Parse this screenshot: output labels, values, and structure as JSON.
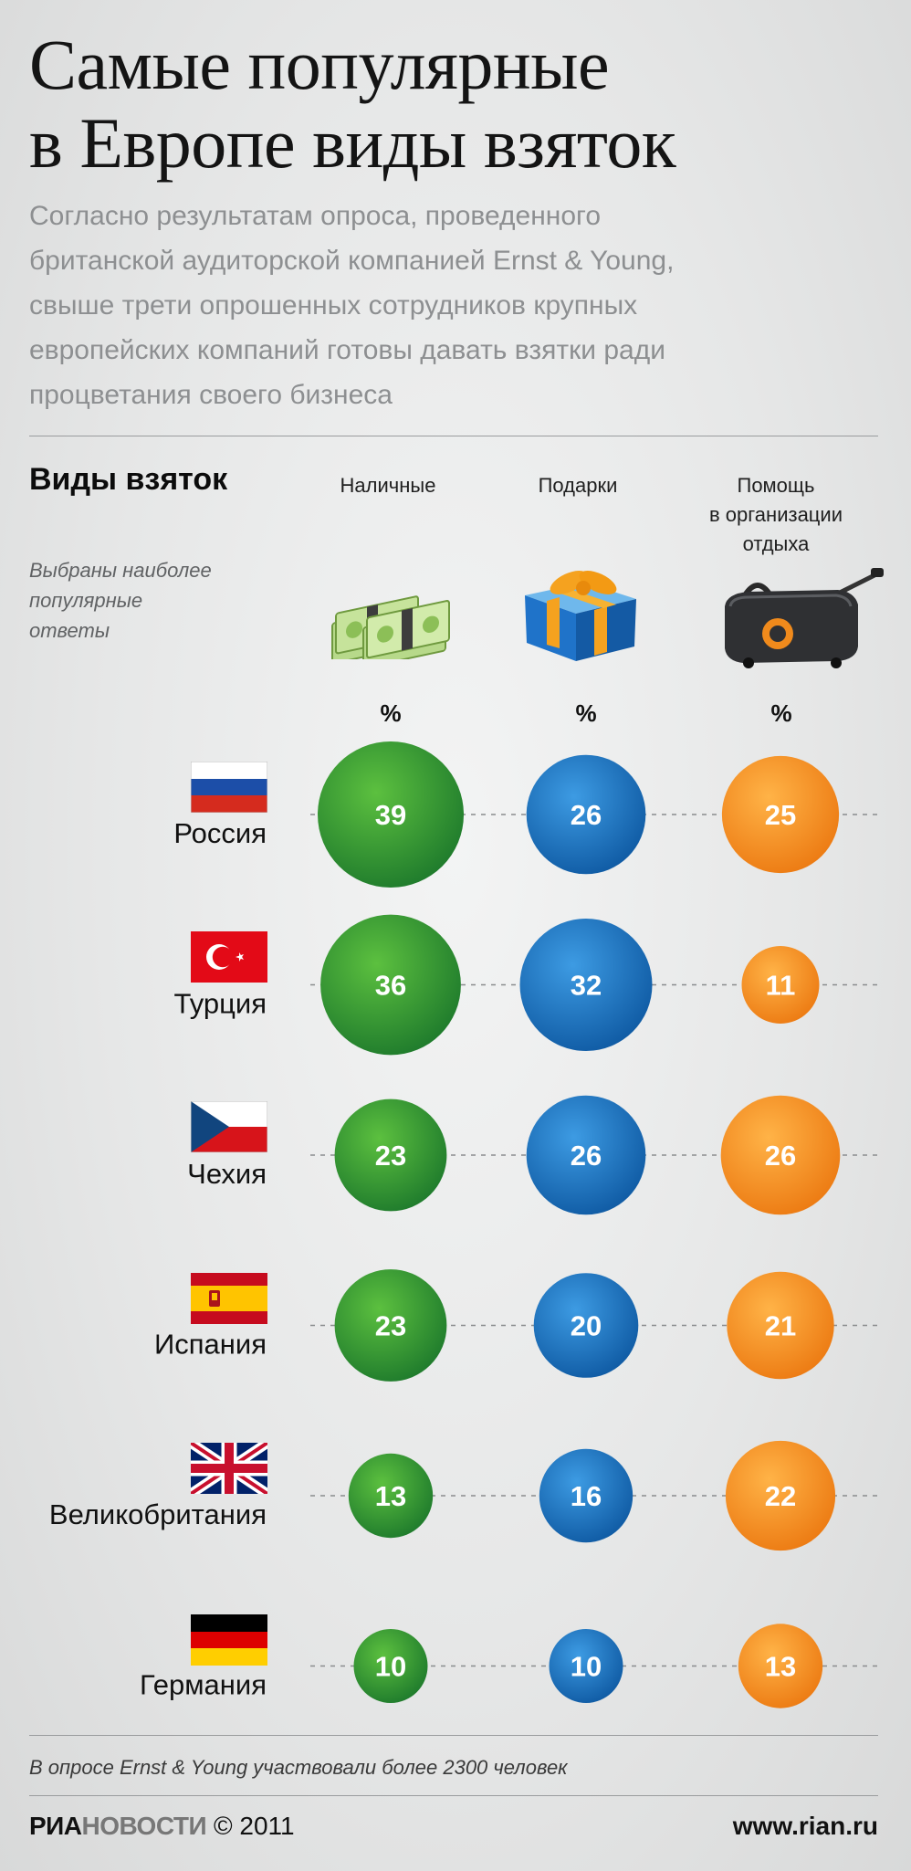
{
  "title": "Самые популярные\nв Европе виды взяток",
  "subtitle": "Согласно результатам опроса, проведенного\nбританской аудиторской компанией Ernst & Young,\nсвыше трети опрошенных сотрудников крупных\nевропейских компаний готовы давать взятки ради\nпроцветания своего бизнеса",
  "section_title": "Виды взяток",
  "section_note": "Выбраны наиболее\nпопулярные\nответы",
  "columns": [
    {
      "label": "Наличные",
      "unit": "%",
      "icon": "cash-icon",
      "color": "#2e8f3a"
    },
    {
      "label": "Подарки",
      "unit": "%",
      "icon": "gift-icon",
      "color": "#1f6eb5"
    },
    {
      "label": "Помощь\nв организации\nотдыха",
      "unit": "%",
      "icon": "travel-bag-icon",
      "color": "#f18a21"
    }
  ],
  "chart_data": {
    "type": "bubble-table",
    "categories": [
      "Россия",
      "Турция",
      "Чехия",
      "Испания",
      "Великобритания",
      "Германия"
    ],
    "series": [
      {
        "name": "Наличные",
        "values": [
          39,
          36,
          23,
          23,
          13,
          10
        ]
      },
      {
        "name": "Подарки",
        "values": [
          26,
          32,
          26,
          20,
          16,
          10
        ]
      },
      {
        "name": "Помощь в организации отдыха",
        "values": [
          25,
          11,
          26,
          21,
          22,
          13
        ]
      }
    ],
    "unit": "%",
    "flags": [
      "russia-flag-icon",
      "turkey-flag-icon",
      "czech-flag-icon",
      "spain-flag-icon",
      "uk-flag-icon",
      "germany-flag-icon"
    ]
  },
  "footnote": "В опросе Ernst & Young участвовали более 2300 человек",
  "footer": {
    "brand_part1": "РИА",
    "brand_part2": "НОВОСТИ",
    "copyright": "© 2011",
    "site": "www.rian.ru"
  }
}
